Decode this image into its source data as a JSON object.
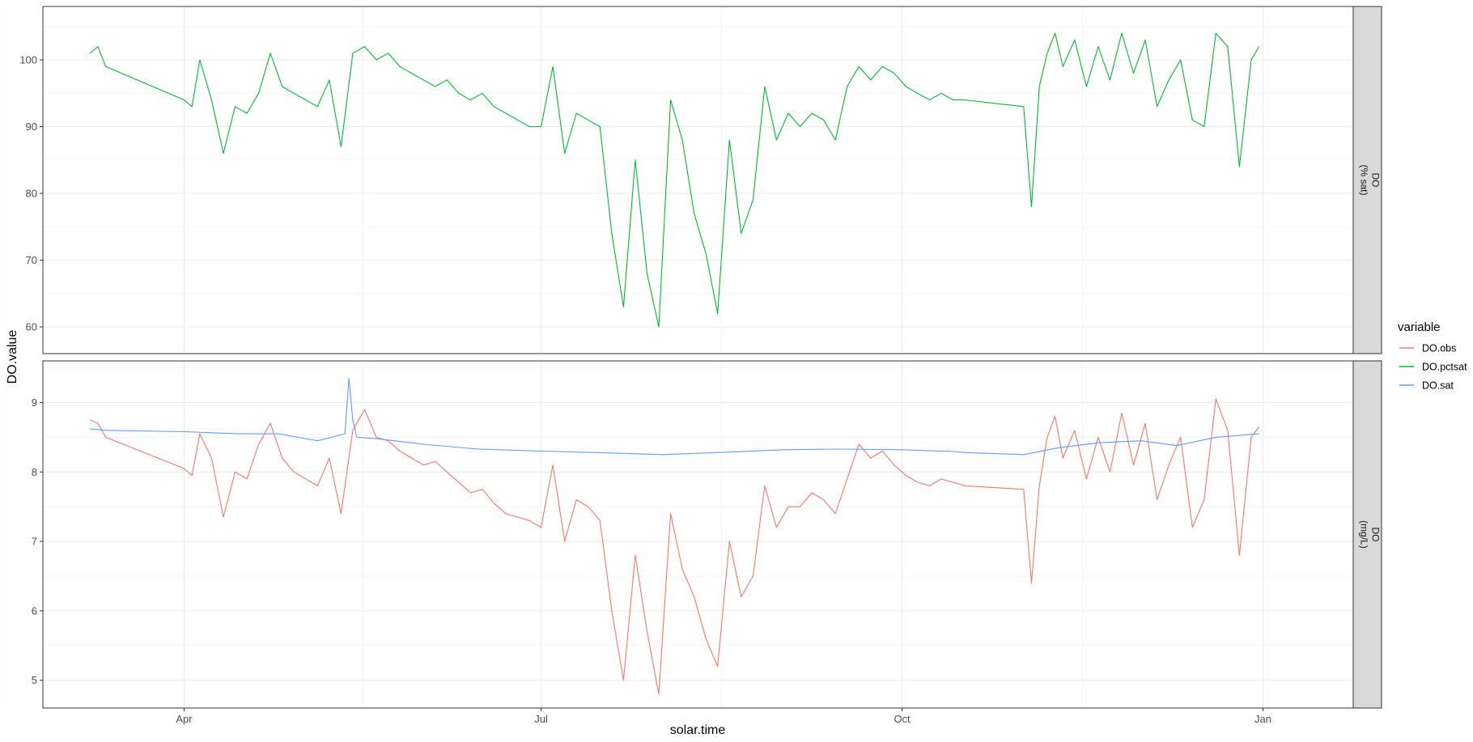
{
  "chart_data": {
    "type": "line",
    "xlabel": "solar.time",
    "ylabel": "DO.value",
    "x_tick_labels": [
      "Apr",
      "Jul",
      "Oct",
      "Jan"
    ],
    "legend": {
      "title": "variable",
      "position": "right",
      "entries": [
        {
          "name": "DO.obs",
          "color": "#F8766D"
        },
        {
          "name": "DO.pctsat",
          "color": "#00BA38"
        },
        {
          "name": "DO.sat",
          "color": "#619CFF"
        }
      ]
    },
    "grid": true,
    "panels": [
      {
        "strip": [
          "DO",
          "(% sat)"
        ],
        "ylim": [
          56,
          108
        ],
        "yticks": [
          60,
          70,
          80,
          90,
          100
        ],
        "series": [
          {
            "name": "DO.pctsat",
            "color": "#00BA38",
            "x": [
              "Mar 8",
              "Mar 10",
              "Mar 12",
              "Apr 1",
              "Apr 3",
              "Apr 5",
              "Apr 8",
              "Apr 11",
              "Apr 14",
              "Apr 17",
              "Apr 20",
              "Apr 23",
              "Apr 26",
              "Apr 29",
              "May 2",
              "May 5",
              "May 8",
              "May 11",
              "May 14",
              "May 17",
              "May 20",
              "May 23",
              "May 26",
              "May 29",
              "Jun 1",
              "Jun 4",
              "Jun 7",
              "Jun 10",
              "Jun 13",
              "Jun 16",
              "Jun 19",
              "Jun 22",
              "Jun 25",
              "Jun 28",
              "Jul 1",
              "Jul 4",
              "Jul 7",
              "Jul 10",
              "Jul 13",
              "Jul 16",
              "Jul 19",
              "Jul 22",
              "Jul 25",
              "Jul 28",
              "Jul 31",
              "Aug 3",
              "Aug 6",
              "Aug 9",
              "Aug 12",
              "Aug 15",
              "Aug 18",
              "Aug 21",
              "Aug 24",
              "Aug 27",
              "Aug 30",
              "Sep 2",
              "Sep 5",
              "Sep 8",
              "Sep 11",
              "Sep 14",
              "Sep 17",
              "Sep 20",
              "Sep 23",
              "Sep 26",
              "Sep 29",
              "Oct 2",
              "Oct 5",
              "Oct 8",
              "Oct 11",
              "Oct 14",
              "Oct 17",
              "Nov 1",
              "Nov 3",
              "Nov 5",
              "Nov 7",
              "Nov 9",
              "Nov 11",
              "Nov 14",
              "Nov 17",
              "Nov 20",
              "Nov 23",
              "Nov 26",
              "Nov 29",
              "Dec 2",
              "Dec 5",
              "Dec 8",
              "Dec 11",
              "Dec 14",
              "Dec 17",
              "Dec 20",
              "Dec 23",
              "Dec 26",
              "Dec 29",
              "Dec 31"
            ],
            "values": [
              101,
              102,
              99,
              94,
              93,
              100,
              94,
              86,
              93,
              92,
              95,
              101,
              96,
              95,
              94,
              93,
              97,
              87,
              101,
              102,
              100,
              101,
              99,
              98,
              97,
              96,
              97,
              95,
              94,
              95,
              93,
              92,
              91,
              90,
              90,
              99,
              86,
              92,
              91,
              90,
              74,
              63,
              85,
              68,
              60,
              94,
              88,
              77,
              71,
              62,
              88,
              74,
              79,
              96,
              88,
              92,
              90,
              92,
              91,
              88,
              96,
              99,
              97,
              99,
              98,
              96,
              95,
              94,
              95,
              94,
              94,
              93,
              78,
              96,
              101,
              104,
              99,
              103,
              96,
              102,
              97,
              104,
              98,
              103,
              93,
              97,
              100,
              91,
              90,
              104,
              102,
              84,
              100,
              102
            ]
          }
        ]
      },
      {
        "strip": [
          "DO",
          "(mg/L)"
        ],
        "ylim": [
          4.6,
          9.6
        ],
        "yticks": [
          5,
          6,
          7,
          8,
          9
        ],
        "series": [
          {
            "name": "DO.obs",
            "color": "#F8766D",
            "x": [
              "Mar 8",
              "Mar 10",
              "Mar 12",
              "Apr 1",
              "Apr 3",
              "Apr 5",
              "Apr 8",
              "Apr 11",
              "Apr 14",
              "Apr 17",
              "Apr 20",
              "Apr 23",
              "Apr 26",
              "Apr 29",
              "May 2",
              "May 5",
              "May 8",
              "May 11",
              "May 14",
              "May 17",
              "May 20",
              "May 23",
              "May 26",
              "May 29",
              "Jun 1",
              "Jun 4",
              "Jun 7",
              "Jun 10",
              "Jun 13",
              "Jun 16",
              "Jun 19",
              "Jun 22",
              "Jun 25",
              "Jun 28",
              "Jul 1",
              "Jul 4",
              "Jul 7",
              "Jul 10",
              "Jul 13",
              "Jul 16",
              "Jul 19",
              "Jul 22",
              "Jul 25",
              "Jul 28",
              "Jul 31",
              "Aug 3",
              "Aug 6",
              "Aug 9",
              "Aug 12",
              "Aug 15",
              "Aug 18",
              "Aug 21",
              "Aug 24",
              "Aug 27",
              "Aug 30",
              "Sep 2",
              "Sep 5",
              "Sep 8",
              "Sep 11",
              "Sep 14",
              "Sep 17",
              "Sep 20",
              "Sep 23",
              "Sep 26",
              "Sep 29",
              "Oct 2",
              "Oct 5",
              "Oct 8",
              "Oct 11",
              "Oct 14",
              "Oct 17",
              "Nov 1",
              "Nov 3",
              "Nov 5",
              "Nov 7",
              "Nov 9",
              "Nov 11",
              "Nov 14",
              "Nov 17",
              "Nov 20",
              "Nov 23",
              "Nov 26",
              "Nov 29",
              "Dec 2",
              "Dec 5",
              "Dec 8",
              "Dec 11",
              "Dec 14",
              "Dec 17",
              "Dec 20",
              "Dec 23",
              "Dec 26",
              "Dec 29",
              "Dec 31"
            ],
            "values": [
              8.75,
              8.7,
              8.5,
              8.05,
              7.95,
              8.55,
              8.2,
              7.35,
              8.0,
              7.9,
              8.4,
              8.7,
              8.2,
              8.0,
              7.9,
              7.8,
              8.2,
              7.4,
              8.6,
              8.9,
              8.5,
              8.45,
              8.3,
              8.2,
              8.1,
              8.15,
              8.0,
              7.85,
              7.7,
              7.75,
              7.55,
              7.4,
              7.35,
              7.3,
              7.2,
              8.1,
              7.0,
              7.6,
              7.5,
              7.3,
              6.0,
              5.0,
              6.8,
              5.7,
              4.8,
              7.4,
              6.6,
              6.2,
              5.6,
              5.2,
              7.0,
              6.2,
              6.5,
              7.8,
              7.2,
              7.5,
              7.5,
              7.7,
              7.6,
              7.4,
              7.9,
              8.4,
              8.2,
              8.3,
              8.1,
              7.95,
              7.85,
              7.8,
              7.9,
              7.85,
              7.8,
              7.75,
              6.4,
              7.8,
              8.5,
              8.8,
              8.2,
              8.6,
              7.9,
              8.5,
              8.0,
              8.85,
              8.1,
              8.7,
              7.6,
              8.1,
              8.5,
              7.2,
              7.6,
              9.05,
              8.6,
              6.8,
              8.5,
              8.65
            ]
          },
          {
            "name": "DO.sat",
            "color": "#619CFF",
            "x": [
              "Mar 8",
              "Mar 12",
              "Apr 1",
              "Apr 15",
              "Apr 25",
              "May 5",
              "May 12",
              "May 13",
              "May 14",
              "May 15",
              "May 20",
              "Jun 1",
              "Jun 15",
              "Jul 1",
              "Jul 15",
              "Aug 1",
              "Aug 15",
              "Sep 1",
              "Sep 15",
              "Oct 1",
              "Oct 10",
              "Oct 13",
              "Oct 17",
              "Nov 1",
              "Nov 10",
              "Nov 20",
              "Dec 1",
              "Dec 10",
              "Dec 20",
              "Dec 31"
            ],
            "values": [
              8.62,
              8.6,
              8.58,
              8.55,
              8.55,
              8.45,
              8.55,
              9.35,
              8.75,
              8.5,
              8.48,
              8.4,
              8.33,
              8.3,
              8.28,
              8.25,
              8.28,
              8.32,
              8.33,
              8.32,
              8.3,
              8.3,
              8.28,
              8.25,
              8.35,
              8.42,
              8.45,
              8.38,
              8.5,
              8.55
            ]
          }
        ]
      }
    ]
  }
}
